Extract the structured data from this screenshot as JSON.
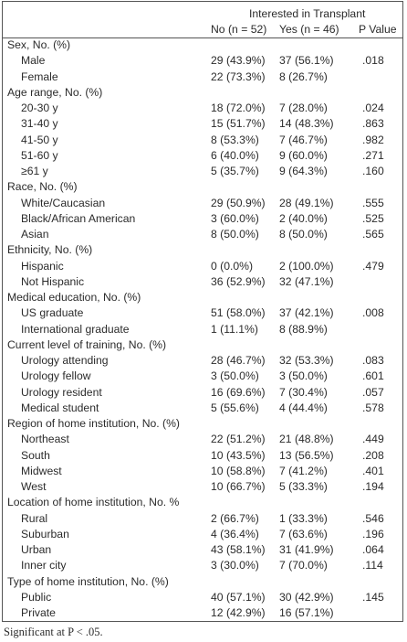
{
  "table": {
    "header": {
      "group": "Interested in Transplant",
      "columns": [
        "No (n = 52)",
        "Yes (n = 46)",
        "P Value"
      ]
    },
    "sections": [
      {
        "label": "Sex, No. (%)",
        "rows": [
          [
            "Male",
            "29 (43.9%)",
            "37 (56.1%)",
            ".018"
          ],
          [
            "Female",
            "22 (73.3%)",
            "8 (26.7%)"
          ]
        ]
      },
      {
        "label": "Age range, No. (%)",
        "rows": [
          [
            "20-30 y",
            "18 (72.0%)",
            "7 (28.0%)",
            ".024"
          ],
          [
            "31-40 y",
            "15 (51.7%)",
            "14 (48.3%)",
            ".863"
          ],
          [
            "41-50 y",
            "8 (53.3%)",
            "7 (46.7%)",
            ".982"
          ],
          [
            "51-60 y",
            "6 (40.0%)",
            "9 (60.0%)",
            ".271"
          ],
          [
            "≥61 y",
            "5 (35.7%)",
            "9 (64.3%)",
            ".160"
          ]
        ]
      },
      {
        "label": "Race, No. (%)",
        "rows": [
          [
            "White/Caucasian",
            "29 (50.9%)",
            "28 (49.1%)",
            ".555"
          ],
          [
            "Black/African American",
            "3 (60.0%)",
            "2 (40.0%)",
            ".525"
          ],
          [
            "Asian",
            "8 (50.0%)",
            "8 (50.0%)",
            ".565"
          ]
        ]
      },
      {
        "label": "Ethnicity, No. (%)",
        "rows": [
          [
            "Hispanic",
            "0 (0.0%)",
            "2 (100.0%)",
            ".479"
          ],
          [
            "Not Hispanic",
            "36 (52.9%)",
            "32 (47.1%)"
          ]
        ]
      },
      {
        "label": "Medical education, No. (%)",
        "rows": [
          [
            "US graduate",
            "51 (58.0%)",
            "37 (42.1%)",
            ".008"
          ],
          [
            "International graduate",
            "1 (11.1%)",
            "8 (88.9%)"
          ]
        ]
      },
      {
        "label": "Current level of training, No. (%)",
        "rows": [
          [
            "Urology attending",
            "28 (46.7%)",
            "32 (53.3%)",
            ".083"
          ],
          [
            "Urology fellow",
            "3 (50.0%)",
            "3 (50.0%)",
            ".601"
          ],
          [
            "Urology resident",
            "16 (69.6%)",
            "7 (30.4%)",
            ".057"
          ],
          [
            "Medical student",
            "5 (55.6%)",
            "4 (44.4%)",
            ".578"
          ]
        ]
      },
      {
        "label": "Region of home institution, No. (%)",
        "rows": [
          [
            "Northeast",
            "22 (51.2%)",
            "21 (48.8%)",
            ".449"
          ],
          [
            "South",
            "10 (43.5%)",
            "13 (56.5%)",
            ".208"
          ],
          [
            "Midwest",
            "10 (58.8%)",
            "7 (41.2%)",
            ".401"
          ],
          [
            "West",
            "10 (66.7%)",
            "5 (33.3%)",
            ".194"
          ]
        ]
      },
      {
        "label": "Location of home institution, No. %",
        "rows": [
          [
            "Rural",
            "2 (66.7%)",
            "1 (33.3%)",
            ".546"
          ],
          [
            "Suburban",
            "4 (36.4%)",
            "7 (63.6%)",
            ".196"
          ],
          [
            "Urban",
            "43 (58.1%)",
            "31 (41.9%)",
            ".064"
          ],
          [
            "Inner city",
            "3 (30.0%)",
            "7 (70.0%)",
            ".114"
          ]
        ]
      },
      {
        "label": "Type of home institution, No. (%)",
        "rows": [
          [
            "Public",
            "40 (57.1%)",
            "30 (42.9%)",
            ".145"
          ],
          [
            "Private",
            "12 (42.9%)",
            "16 (57.1%)"
          ]
        ]
      }
    ],
    "footnote": "Significant at P < .05."
  }
}
